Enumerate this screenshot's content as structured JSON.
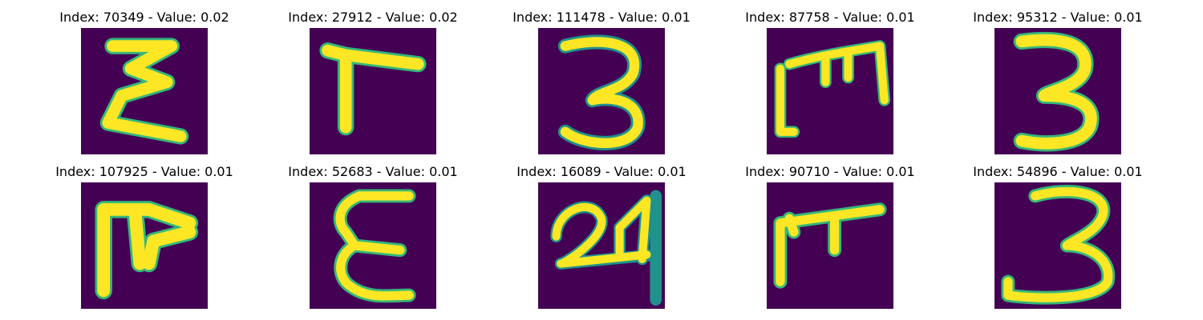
{
  "colors": {
    "background": "#440154",
    "stroke_mid": "#21918c",
    "stroke_mid2": "#35b779",
    "stroke_high": "#fde725"
  },
  "panels": [
    {
      "title": "Index: 70349 - Value: 0.02",
      "glyph": "E"
    },
    {
      "title": "Index: 27912 - Value: 0.02",
      "glyph": "corner"
    },
    {
      "title": "Index: 111478 - Value: 0.01",
      "glyph": "3"
    },
    {
      "title": "Index: 87758 - Value: 0.01",
      "glyph": "ltm"
    },
    {
      "title": "Index: 95312 - Value: 0.01",
      "glyph": "3"
    },
    {
      "title": "Index: 107925 - Value: 0.01",
      "glyph": "pi"
    },
    {
      "title": "Index: 52683 - Value: 0.01",
      "glyph": "E2"
    },
    {
      "title": "Index: 16089 - Value: 0.01",
      "glyph": "24"
    },
    {
      "title": "Index: 90710 - Value: 0.01",
      "glyph": "T"
    },
    {
      "title": "Index: 54896 - Value: 0.01",
      "glyph": "3b"
    }
  ]
}
